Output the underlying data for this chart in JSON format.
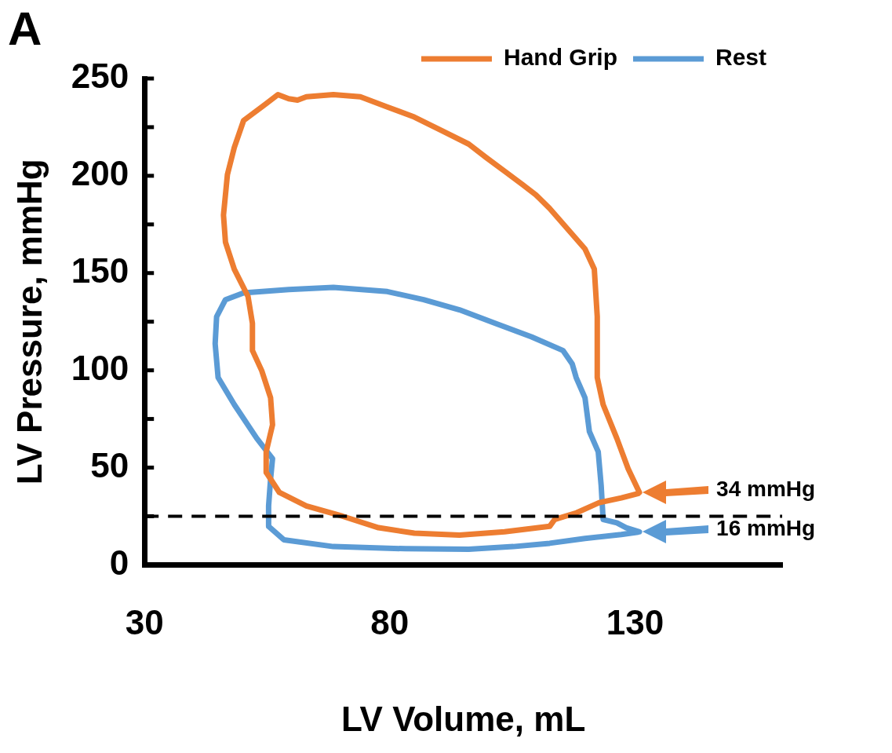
{
  "chart_data": {
    "type": "line",
    "xlabel": "LV Volume, mL",
    "ylabel": "LV Pressure, mmHg",
    "xlim": [
      30,
      160
    ],
    "xticks": [
      30,
      80,
      130
    ],
    "ylim": [
      0,
      250
    ],
    "yticks": [
      0,
      {
        "value": 25,
        "label": null
      },
      50,
      {
        "value": 75,
        "label": null
      },
      100,
      {
        "value": 125,
        "label": null
      },
      150,
      {
        "value": 175,
        "label": null
      },
      200,
      {
        "value": 225,
        "label": null
      },
      250
    ],
    "grid": false,
    "legend": "top right",
    "marker": "none",
    "line_style": "solid",
    "series": [
      {
        "name": "Hand Grip",
        "color": "#ed7d31",
        "x": [
          130.9,
          128.6,
          126.3,
          123.5,
          122.3,
          122.3,
          121.7,
          119.8,
          116.2,
          112.6,
          109.8,
          107.1,
          103.4,
          99.7,
          96.1,
          90.6,
          85,
          79.5,
          74,
          68.5,
          63,
          61.2,
          59.4,
          57.2,
          54.8,
          50.2,
          48.3,
          46.9,
          46.1,
          46.5,
          48.3,
          51.1,
          52,
          52,
          53.9,
          55.7,
          56.1,
          54.8,
          54.8,
          57.5,
          63,
          70.4,
          77.7,
          85,
          94.2,
          103.4,
          112.6,
          113.6,
          118.1,
          122.7,
          127.2,
          130.6
        ],
        "values": [
          37.2,
          49.4,
          65,
          82.4,
          96.3,
          127.6,
          152,
          162.4,
          172.8,
          183.2,
          190.2,
          195.4,
          202.4,
          209.3,
          216.3,
          223.2,
          230.2,
          235.4,
          240.6,
          241.7,
          240.6,
          238.9,
          239.6,
          241.7,
          237.1,
          228.4,
          214.5,
          200.6,
          179.8,
          165.9,
          152,
          138,
          124.1,
          110.2,
          99.8,
          85.9,
          72,
          58.1,
          47.6,
          37.2,
          30.3,
          25,
          19.1,
          16.3,
          15.3,
          17,
          19.8,
          23.3,
          26.8,
          32,
          34.4,
          36.6
        ]
      },
      {
        "name": "Rest",
        "color": "#5b9bd5",
        "x": [
          130.9,
          128.2,
          126.3,
          123.5,
          123.1,
          122.5,
          120.7,
          119.8,
          118,
          117.2,
          115.3,
          108.9,
          101.6,
          94.2,
          86.9,
          79.5,
          68.5,
          59.4,
          50.2,
          46.5,
          44.7,
          44.4,
          45,
          48.3,
          52.9,
          56.1,
          55.7,
          55.3,
          55.3,
          58.4,
          68.5,
          83.2,
          96.1,
          105.2,
          112.6,
          119.8,
          127.2,
          130.6
        ],
        "values": [
          17,
          19.1,
          21.6,
          23.3,
          40.7,
          58.1,
          68.5,
          85.9,
          96.3,
          103.3,
          110.2,
          117.2,
          124.1,
          131.1,
          136.3,
          140.5,
          142.6,
          141.5,
          139.8,
          136.3,
          127.6,
          113.7,
          96.3,
          82.4,
          65,
          54.6,
          44.2,
          30.3,
          19.8,
          12.9,
          9.4,
          8.3,
          8,
          9.4,
          11.1,
          13.6,
          15.6,
          16.8
        ]
      }
    ],
    "ref_lines": [
      {
        "axis": "y",
        "value": 25,
        "color": "#000000",
        "line_style": "dashed"
      }
    ],
    "annotations": [
      "A",
      "34 mmHg",
      "16 mmHg"
    ]
  }
}
